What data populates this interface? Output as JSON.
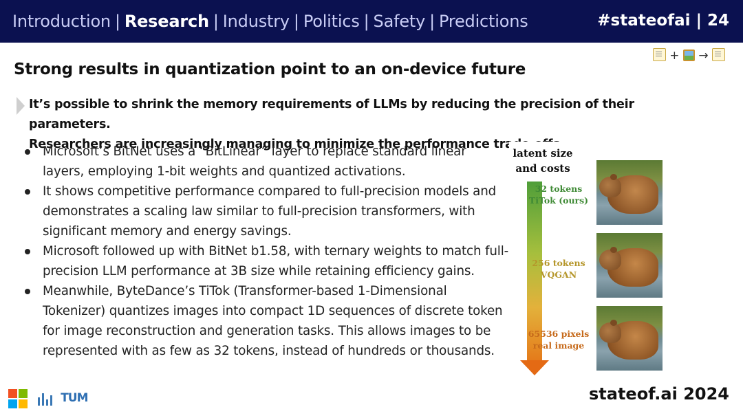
{
  "nav": {
    "items": [
      {
        "label": "Introduction",
        "active": false
      },
      {
        "label": "Research",
        "active": true
      },
      {
        "label": "Industry",
        "active": false
      },
      {
        "label": "Politics",
        "active": false
      },
      {
        "label": "Safety",
        "active": false
      },
      {
        "label": "Predictions",
        "active": false
      }
    ],
    "separator": "|"
  },
  "header": {
    "tag": "#stateofai | 24"
  },
  "modality_icons": {
    "plus": "+",
    "arrow": "→",
    "icons": [
      "memo-icon",
      "framed-picture-icon",
      "memo-icon"
    ]
  },
  "slide": {
    "title": "Strong results in quantization point to an on-device future",
    "callout": [
      "It’s possible to shrink the memory requirements of LLMs by reducing the precision of their parameters.",
      "Researchers are increasingly managing to minimize the performance trade-offs."
    ],
    "bullets": [
      "Microsoft’s BitNet uses a “BitLinear” layer to replace standard linear layers, employing 1-bit weights and quantized activations.",
      "It shows competitive performance compared to full-precision models and demonstrates a scaling law similar to full-precision transformers, with significant memory and energy savings.",
      "Microsoft followed up with BitNet b1.58, with ternary weights to match full-precision LLM performance at 3B size while retaining efficiency gains.",
      "Meanwhile, ByteDance’s TiTok (Transformer-based 1-Dimensional Tokenizer) quantizes images into compact 1D sequences of discrete token for image reconstruction and generation tasks. This allows images to be represented with as few as 32 tokens, instead of hundreds or thousands."
    ]
  },
  "figure": {
    "heading": [
      "latent size",
      "and costs"
    ],
    "rows": [
      {
        "line1": "32 tokens",
        "line2": "TiTok (ours)",
        "color": "#3f8a35"
      },
      {
        "line1": "256 tokens",
        "line2": "VQGAN",
        "color": "#b5962a"
      },
      {
        "line1": "65536 pixels",
        "line2": "real image",
        "color": "#c66a1b"
      }
    ]
  },
  "footer": {
    "tag": "stateof.ai 2024",
    "logos": [
      "microsoft-logo",
      "tum-logo"
    ],
    "tum_text": "TUM"
  },
  "colors": {
    "header_bg": "#0b1150",
    "nav_inactive": "#c9cdf5",
    "accent_arrow_top": "#4f9e3a",
    "accent_arrow_bottom": "#e46a14"
  }
}
